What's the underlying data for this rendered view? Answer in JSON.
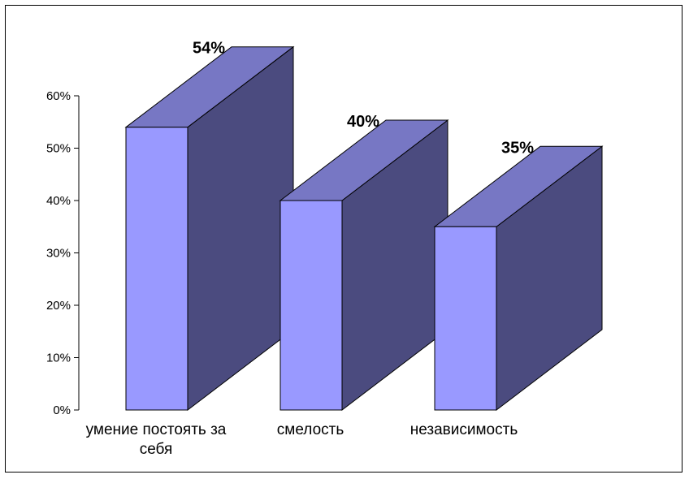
{
  "chart_data": {
    "type": "bar",
    "categories": [
      "умение постоять за себя",
      "смелость",
      "независимость"
    ],
    "category_label_lines": [
      [
        "умение постоять за",
        "себя"
      ],
      [
        "смелость"
      ],
      [
        "независимость"
      ]
    ],
    "values": [
      54,
      40,
      35
    ],
    "data_labels": [
      "54%",
      "40%",
      "35%"
    ],
    "ylim": [
      0,
      60
    ],
    "yticks": [
      0,
      10,
      20,
      30,
      40,
      50,
      60
    ],
    "ytick_labels": [
      "0%",
      "10%",
      "20%",
      "30%",
      "40%",
      "50%",
      "60%"
    ],
    "grid": false,
    "legend": "none",
    "style": "3d",
    "colors": {
      "front": "#9999ff",
      "top": "#7777c4",
      "side": "#4b4b7f",
      "frame": "#000000"
    }
  }
}
